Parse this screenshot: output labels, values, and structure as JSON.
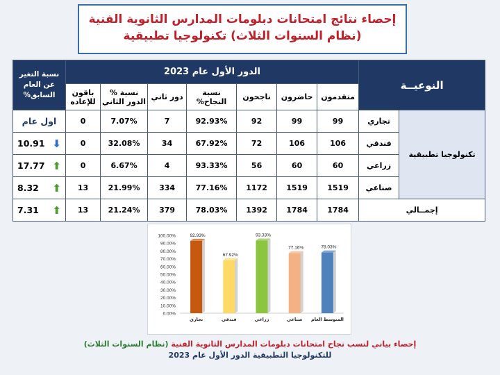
{
  "title": {
    "line1": "إحصاء نتائج امتحانات دبلومات المدارس الثانوية الفنية",
    "line2": "(نظام السنوات الثلاث) تكنولوجيا تطبيقية"
  },
  "table": {
    "header_type": "النوعيــة",
    "header_session": "الدور الأول عام 2023",
    "header_change": "نسبة التغير عن العام السابق%",
    "columns": [
      "متقدمون",
      "حاضرون",
      "ناجحون",
      "نسبة النجاح%",
      "دور ثاني",
      "نسبة % الدور الثاني",
      "باقون للإعاده"
    ],
    "group_label": "تكنولوجيا تطبيقية",
    "rows": [
      {
        "name": "تجاري",
        "vals": [
          "99",
          "99",
          "92",
          "92.93%",
          "7",
          "7.07%",
          "0"
        ],
        "change": "اول عام",
        "arrow": ""
      },
      {
        "name": "فندقي",
        "vals": [
          "106",
          "106",
          "72",
          "67.92%",
          "34",
          "32.08%",
          "0"
        ],
        "change": "10.91",
        "arrow": "down"
      },
      {
        "name": "زراعي",
        "vals": [
          "60",
          "60",
          "56",
          "93.33%",
          "4",
          "6.67%",
          "0"
        ],
        "change": "17.77",
        "arrow": "up"
      },
      {
        "name": "صناعي",
        "vals": [
          "1519",
          "1519",
          "1172",
          "77.16%",
          "334",
          "21.99%",
          "13"
        ],
        "change": "8.32",
        "arrow": "up"
      }
    ],
    "total": {
      "name": "إجمــالي",
      "vals": [
        "1784",
        "1784",
        "1392",
        "78.03%",
        "379",
        "21.24%",
        "13"
      ],
      "change": "7.31",
      "arrow": "up"
    }
  },
  "chart_data": {
    "type": "bar",
    "categories": [
      "تجاري",
      "فندقي",
      "زراعي",
      "صناعي",
      "المتوسط العام"
    ],
    "values": [
      92.93,
      67.92,
      93.33,
      77.16,
      78.03
    ],
    "data_labels": [
      "92.93%",
      "67.92%",
      "93.33%",
      "77.16%",
      "78.03%"
    ],
    "colors": [
      "#c5590f",
      "#ffd966",
      "#8cc63f",
      "#f4b183",
      "#4f81bd"
    ],
    "ylim": [
      0,
      100
    ],
    "yticks": [
      "0.00%",
      "10.00%",
      "20.00%",
      "30.00%",
      "40.00%",
      "50.00%",
      "60.00%",
      "70.00%",
      "80.00%",
      "90.00%",
      "100.00%"
    ],
    "grid": false
  },
  "caption": {
    "line1_red": "إحصاء بياني لنسب نجاح امتحانات دبلومات المدارس الثانوية الفنية",
    "line1_green": "(نظام السنوات الثلاث)",
    "line2": "للتكنولوجيا التطبيقية الدور الأول عام 2023"
  }
}
